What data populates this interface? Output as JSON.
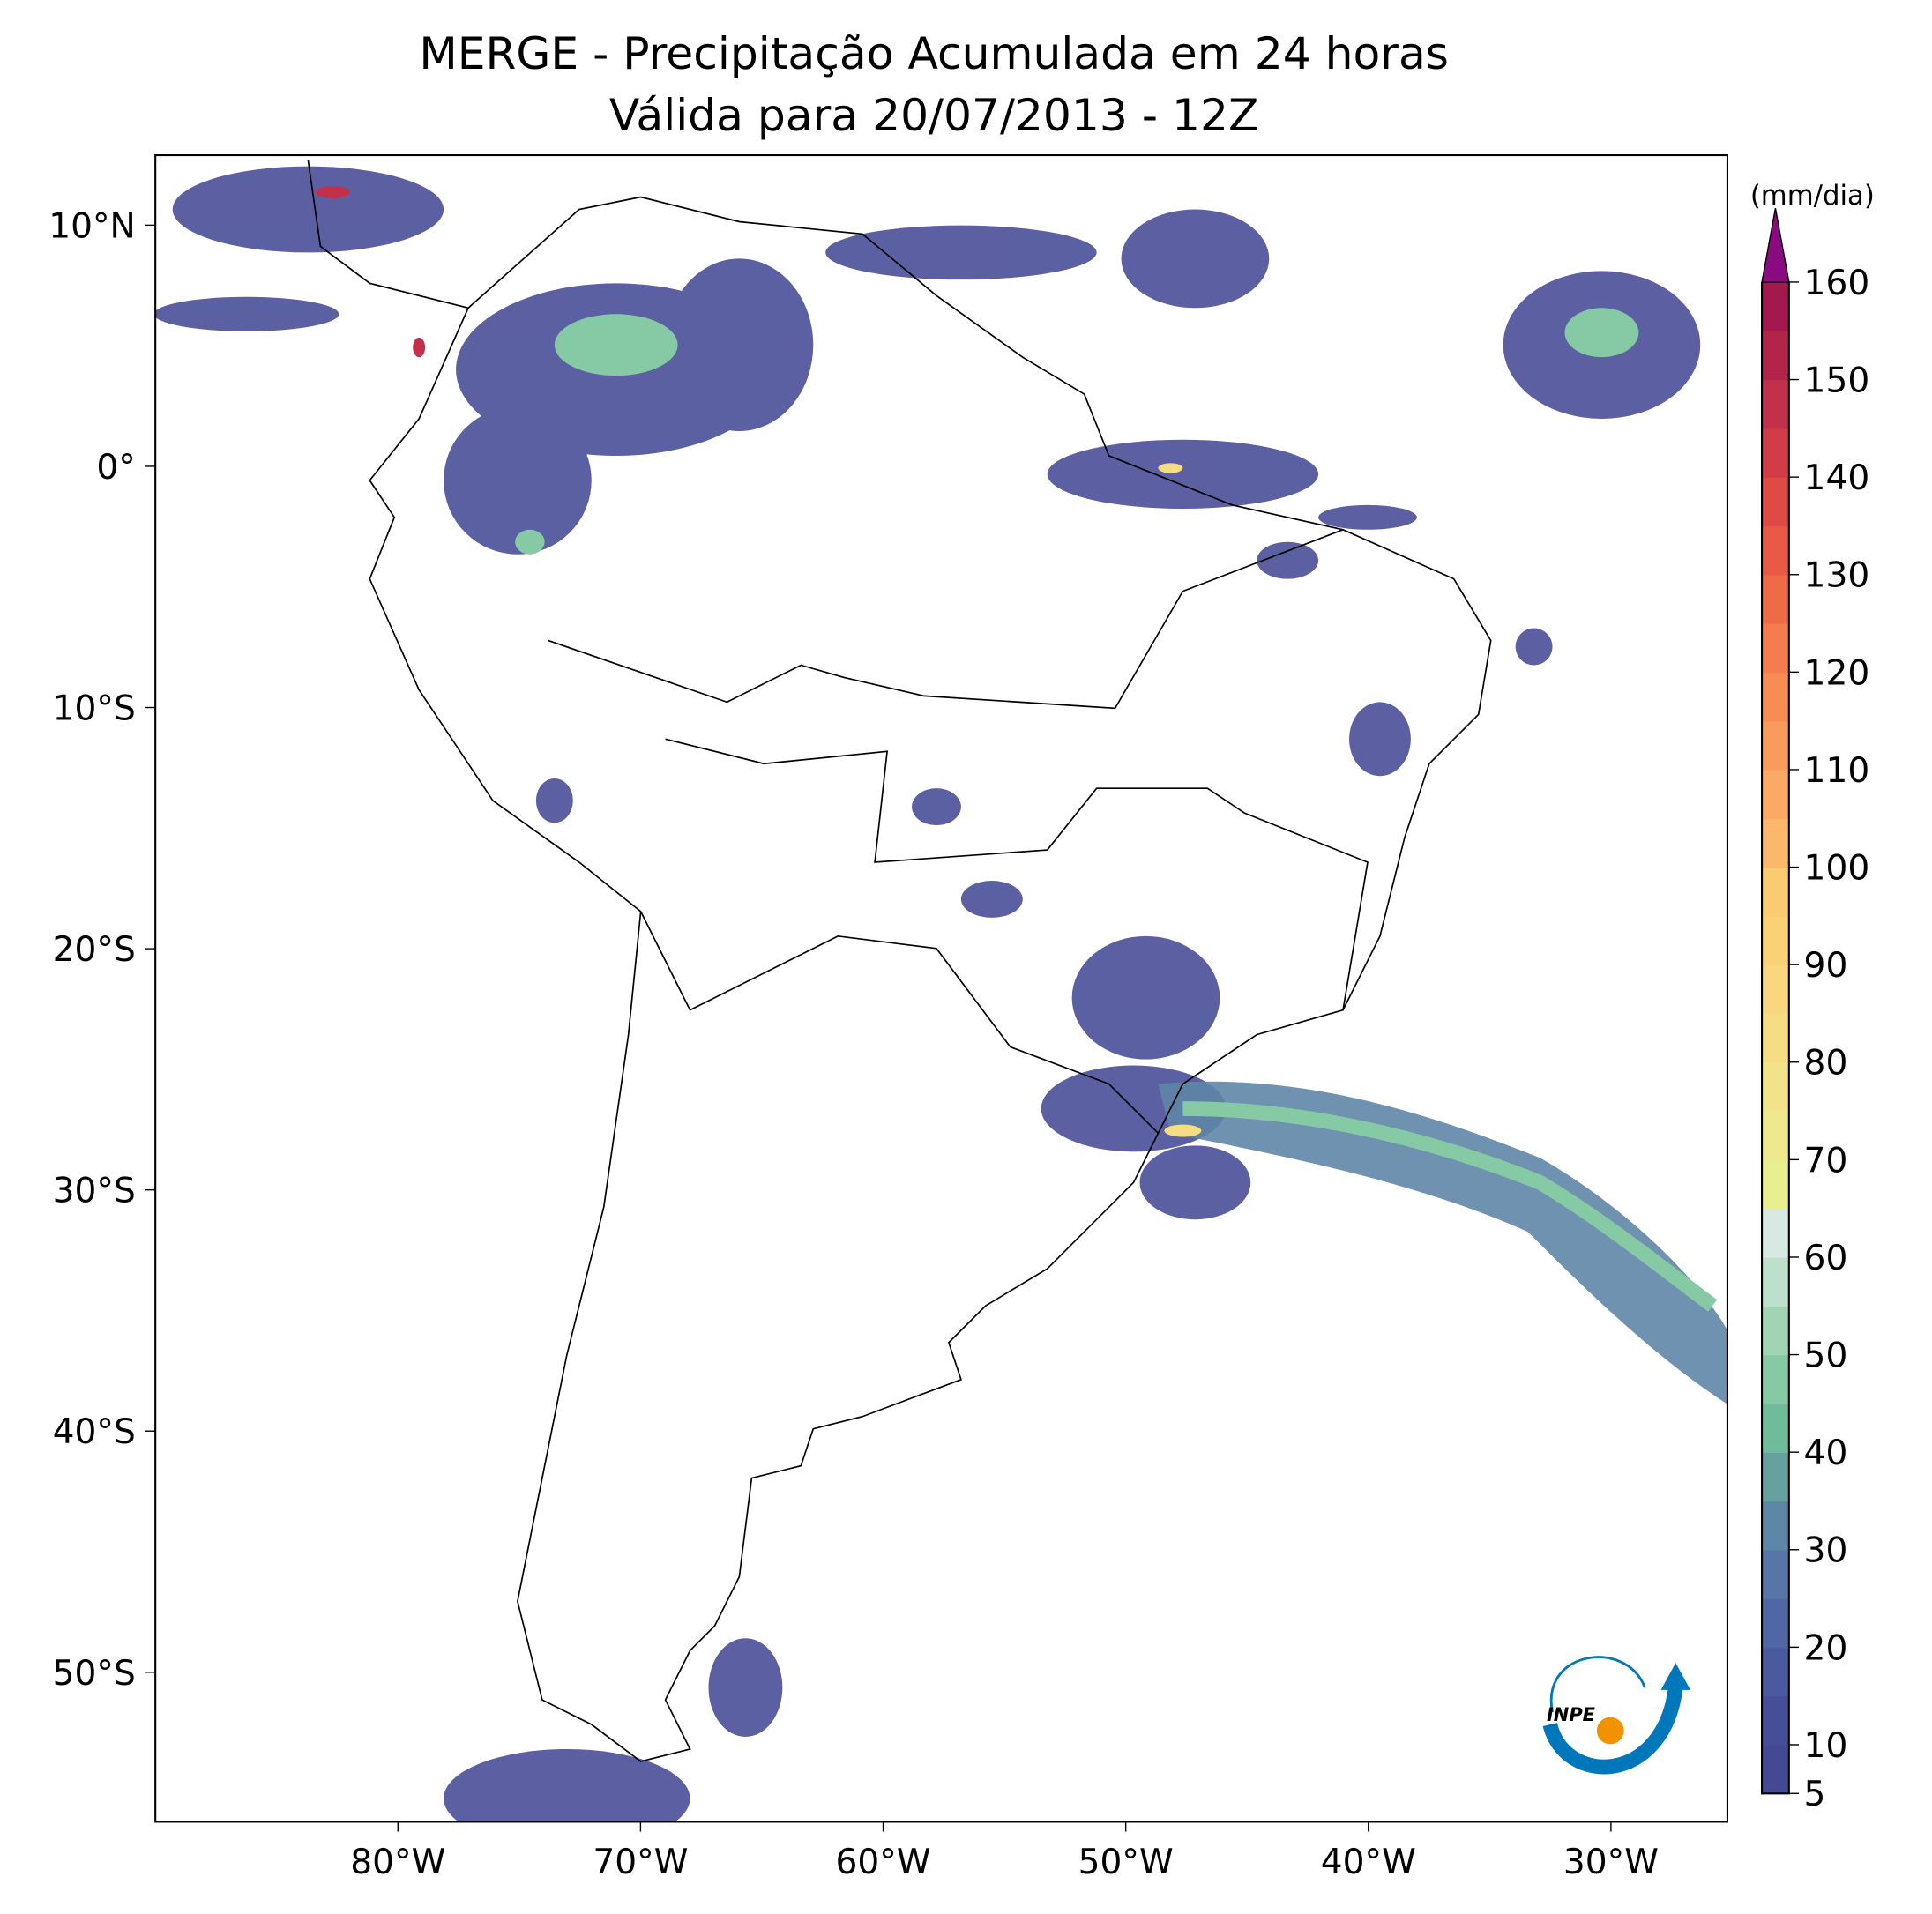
{
  "title": "MERGE - Precipitação Acumulada em 24 horas",
  "subtitle": "Válida para 20/07/2013 - 12Z",
  "map": {
    "lon_range": [
      -90,
      -25.2
    ],
    "lat_range": [
      -56.2,
      12.9
    ],
    "lon_ticks": [
      {
        "value": -80,
        "label": "80°W"
      },
      {
        "value": -70,
        "label": "70°W"
      },
      {
        "value": -60,
        "label": "60°W"
      },
      {
        "value": -50,
        "label": "50°W"
      },
      {
        "value": -40,
        "label": "40°W"
      },
      {
        "value": -30,
        "label": "30°W"
      }
    ],
    "lat_ticks": [
      {
        "value": 10,
        "label": "10°N"
      },
      {
        "value": 0,
        "label": "0°"
      },
      {
        "value": -10,
        "label": "10°S"
      },
      {
        "value": -20,
        "label": "20°S"
      },
      {
        "value": -30,
        "label": "30°S"
      },
      {
        "value": -40,
        "label": "40°S"
      },
      {
        "value": -50,
        "label": "50°S"
      }
    ]
  },
  "colorbar": {
    "label": "(mm/dia)",
    "range": [
      5,
      160
    ],
    "ticks": [
      5,
      10,
      20,
      30,
      40,
      50,
      60,
      70,
      80,
      90,
      100,
      110,
      120,
      130,
      140,
      150,
      160
    ],
    "levels": [
      5,
      10,
      15,
      20,
      25,
      30,
      35,
      40,
      45,
      50,
      55,
      60,
      65,
      70,
      75,
      80,
      85,
      90,
      95,
      100,
      105,
      110,
      115,
      120,
      125,
      130,
      135,
      140,
      145,
      150,
      155,
      160
    ],
    "colors": [
      "#444993",
      "#464e98",
      "#4a5a9e",
      "#4f67a4",
      "#5775a7",
      "#5e86a6",
      "#66a09f",
      "#6fbc9c",
      "#85caa4",
      "#a0d4b2",
      "#bde0cc",
      "#d6e9e3",
      "#e7ef8e",
      "#eee88e",
      "#f2e289",
      "#f6dd84",
      "#f8d77e",
      "#fad176",
      "#fbcb72",
      "#fbb86b",
      "#faaa64",
      "#f99b5c",
      "#f78d55",
      "#f47c4e",
      "#ef6b48",
      "#e85a46",
      "#de4b45",
      "#d03d47",
      "#c2314a",
      "#b3244b",
      "#a3194d"
    ],
    "extend_color": "#8a0b80"
  },
  "logo_text": "INPE"
}
